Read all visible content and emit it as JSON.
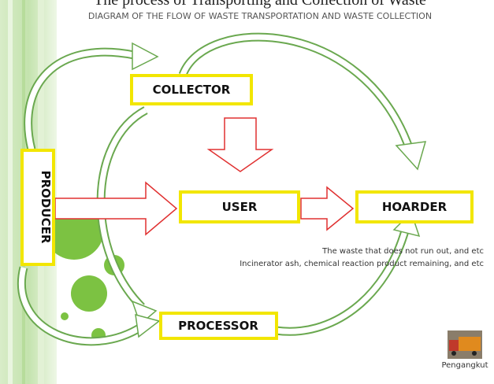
{
  "header": {
    "title": "The process of Transporting and Collection of Waste",
    "subtitle": "DIAGRAM OF THE FLOW OF WASTE TRANSPORTATION AND WASTE COLLECTION"
  },
  "nodes": [
    {
      "label": "COLLECTOR"
    },
    {
      "label": "PRODUCER"
    },
    {
      "label": "USER"
    },
    {
      "label": "HOARDER"
    },
    {
      "label": "PROCESSOR"
    }
  ],
  "notes": [
    "The waste that does not run out, and etc",
    "Incinerator ash, chemical reaction product remaining, and etc"
  ],
  "icon_label": "Pengangkut"
}
